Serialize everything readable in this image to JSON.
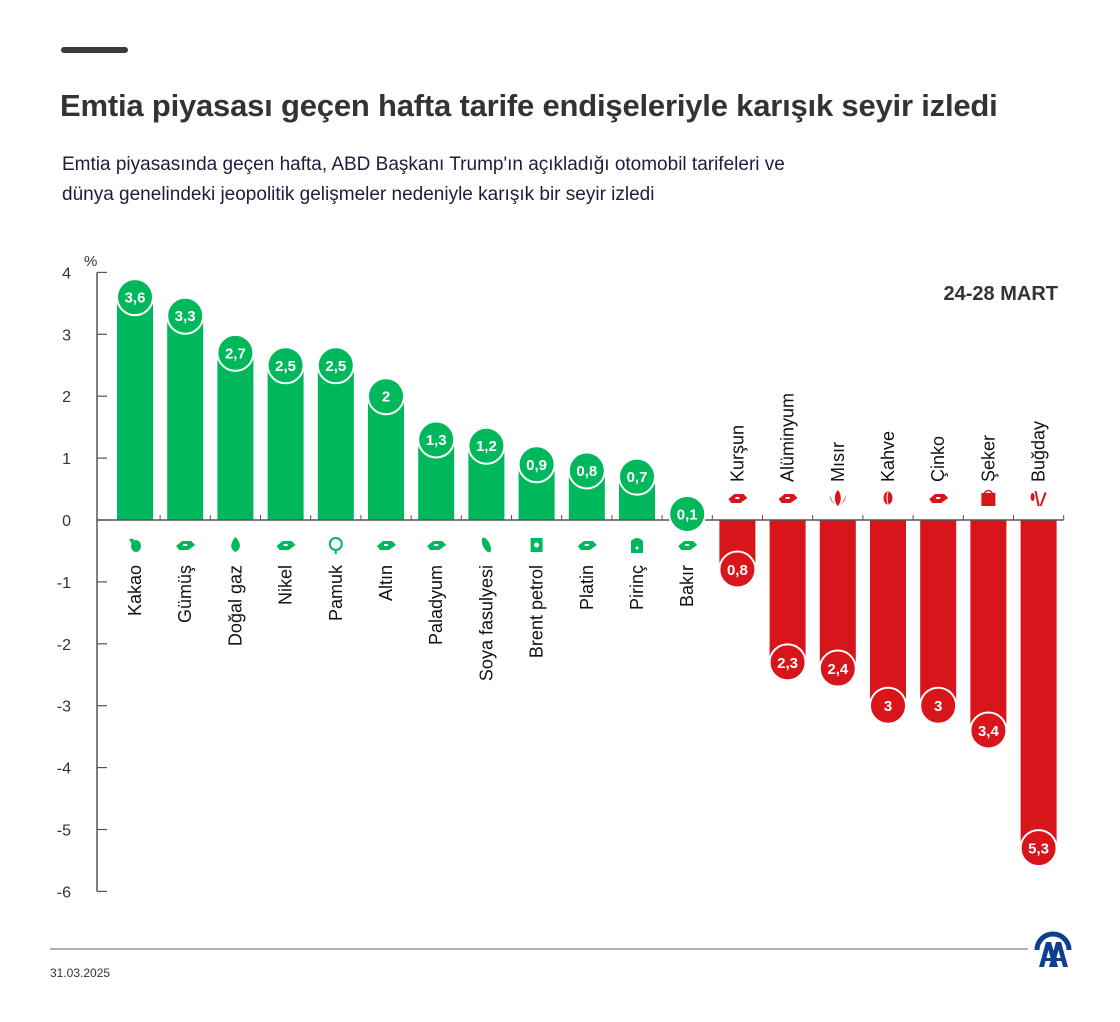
{
  "header": {
    "title": "Emtia piyasası geçen hafta tarife endişeleriyle karışık seyir izledi",
    "subtitle_line1": "Emtia piyasasında geçen hafta, ABD Başkanı Trump'ın açıkladığı otomobil tarifeleri ve",
    "subtitle_line2": "dünya genelindeki jeopolitik gelişmeler nedeniyle karışık bir seyir izledi",
    "period": "24-28 MART"
  },
  "footer": {
    "date": "31.03.2025",
    "logo": "AA"
  },
  "colors": {
    "positive": "#00b85c",
    "negative": "#d7151b",
    "axis": "#555555"
  },
  "chart_data": {
    "type": "bar",
    "title": "Emtia piyasası geçen hafta tarife endişeleriyle karışık seyir izledi",
    "xlabel": "",
    "ylabel": "%",
    "ylim": [
      -6,
      4
    ],
    "yticks": [
      4,
      3,
      2,
      1,
      0,
      -1,
      -2,
      -3,
      -4,
      -5,
      -6
    ],
    "grid": false,
    "categories": [
      "Kakao",
      "Gümüş",
      "Doğal gaz",
      "Nikel",
      "Pamuk",
      "Altın",
      "Paladyum",
      "Soya fasulyesi",
      "Brent petrol",
      "Platin",
      "Pirinç",
      "Bakır",
      "Kurşun",
      "Alüminyum",
      "Mısır",
      "Kahve",
      "Çinko",
      "Şeker",
      "Buğday"
    ],
    "values": [
      3.6,
      3.3,
      2.7,
      2.5,
      2.5,
      2.0,
      1.3,
      1.2,
      0.9,
      0.8,
      0.7,
      0.1,
      -0.8,
      -2.3,
      -2.4,
      -3.0,
      -3.0,
      -3.4,
      -5.3
    ],
    "value_labels": [
      "3,6",
      "3,3",
      "2,7",
      "2,5",
      "2,5",
      "2",
      "1,3",
      "1,2",
      "0,9",
      "0,8",
      "0,7",
      "0,1",
      "0,8",
      "2,3",
      "2,4",
      "3",
      "3",
      "3,4",
      "5,3"
    ],
    "icons": [
      "cocoa-icon",
      "metal-bars-icon",
      "flame-icon",
      "metal-bars-icon",
      "cotton-icon",
      "metal-bars-icon",
      "metal-bars-icon",
      "soybean-icon",
      "oil-barrel-icon",
      "metal-bars-icon",
      "rice-sack-icon",
      "metal-bars-icon",
      "metal-bars-icon",
      "metal-bars-icon",
      "corn-icon",
      "coffee-bean-icon",
      "metal-bars-icon",
      "sugar-sack-icon",
      "wheat-icon"
    ]
  }
}
